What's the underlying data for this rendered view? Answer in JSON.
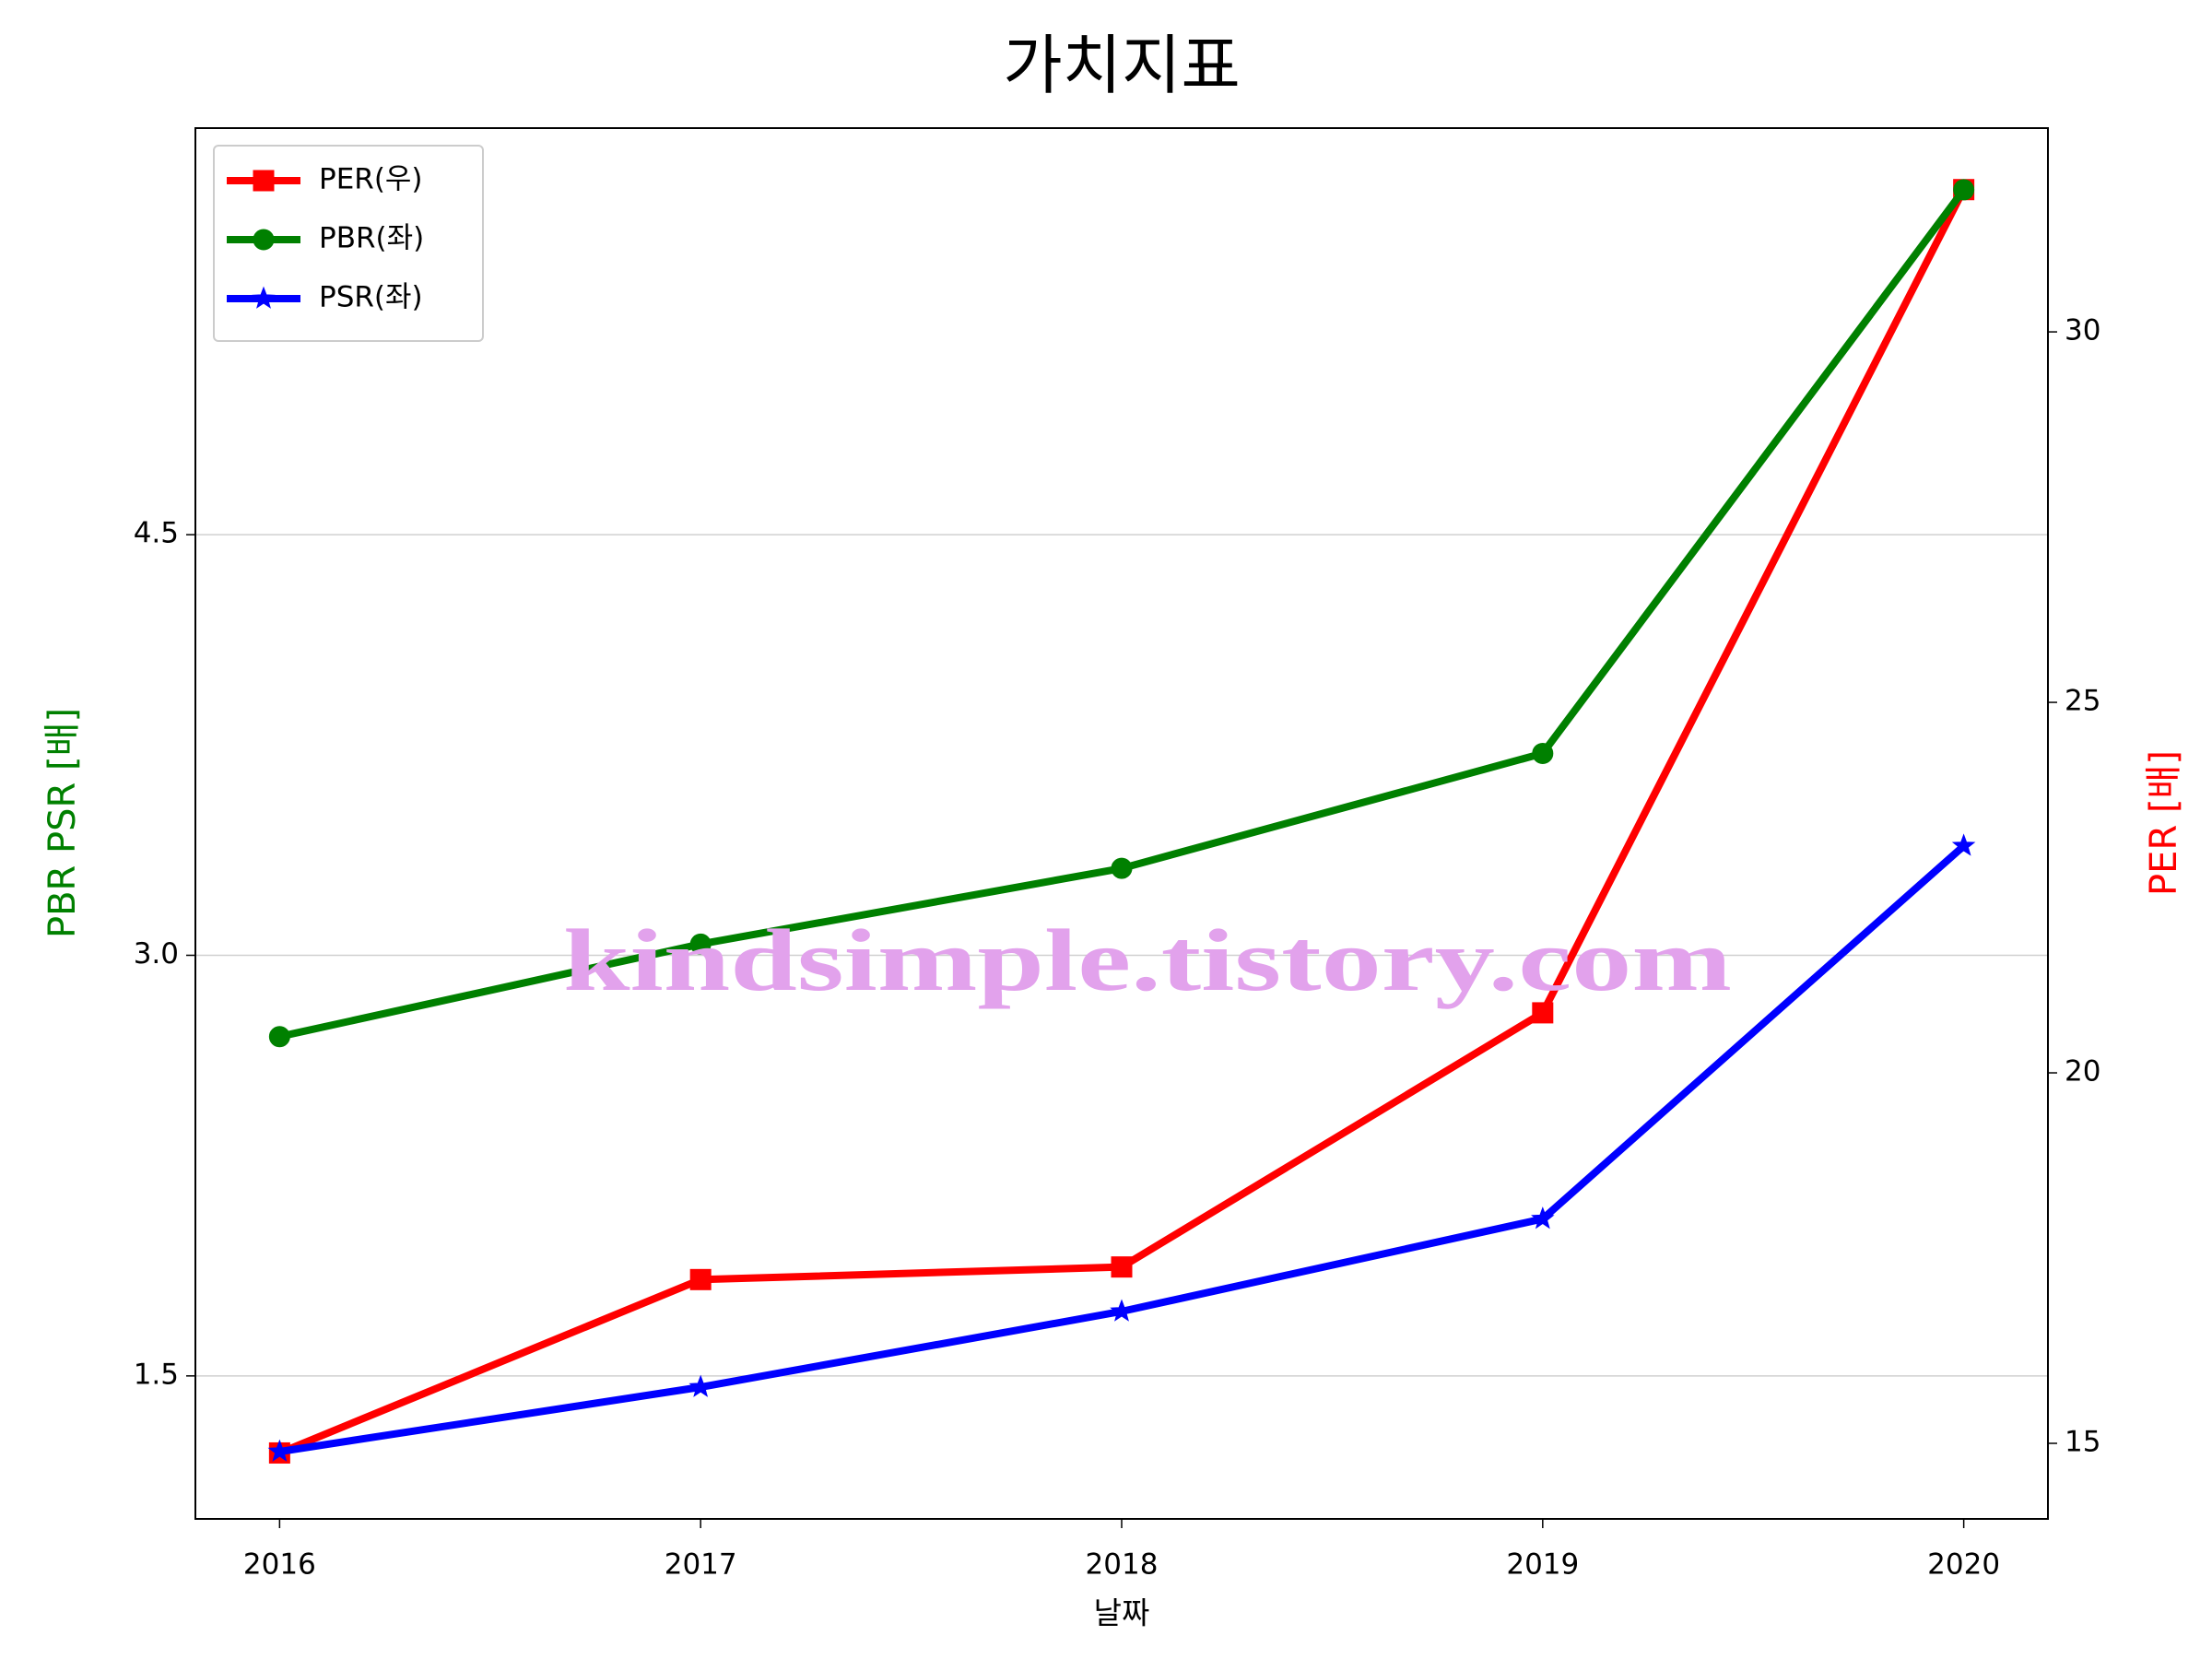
{
  "chart_data": {
    "type": "line",
    "title": "가치지표",
    "x_label": "날짜",
    "y_label": "PBR PSR [배]",
    "y_label_color": "#008000",
    "y2_label": "PER [배]",
    "y2_label_color": "#ff0000",
    "x": [
      2016,
      2017,
      2018,
      2019,
      2020
    ],
    "xlim": [
      2015.8,
      2020.2
    ],
    "xticks": [
      2016,
      2017,
      2018,
      2019,
      2020
    ],
    "ylim": [
      0.99,
      5.95
    ],
    "yticks": [
      1.5,
      {
        "value": 3,
        "label": "3.0"
      },
      4.5
    ],
    "y2lim": [
      13.98,
      32.75
    ],
    "y2ticks": [
      15,
      20,
      25,
      30
    ],
    "grid": true,
    "legend": "upper left",
    "series": [
      {
        "name": "PER(우)",
        "color": "#ff0000",
        "marker": "square",
        "axis": "y2",
        "values": [
          14.87,
          17.21,
          17.38,
          20.81,
          31.92
        ]
      },
      {
        "name": "PBR(좌)",
        "color": "#008000",
        "marker": "circle",
        "values": [
          2.71,
          3.04,
          3.31,
          3.72,
          5.73
        ]
      },
      {
        "name": "PSR(좌)",
        "color": "#0000ff",
        "marker": "star",
        "values": [
          1.23,
          1.46,
          1.73,
          2.06,
          3.39
        ]
      }
    ],
    "watermark": "kindsimple.tistory.com",
    "watermark_color": "#e2a2ec"
  }
}
